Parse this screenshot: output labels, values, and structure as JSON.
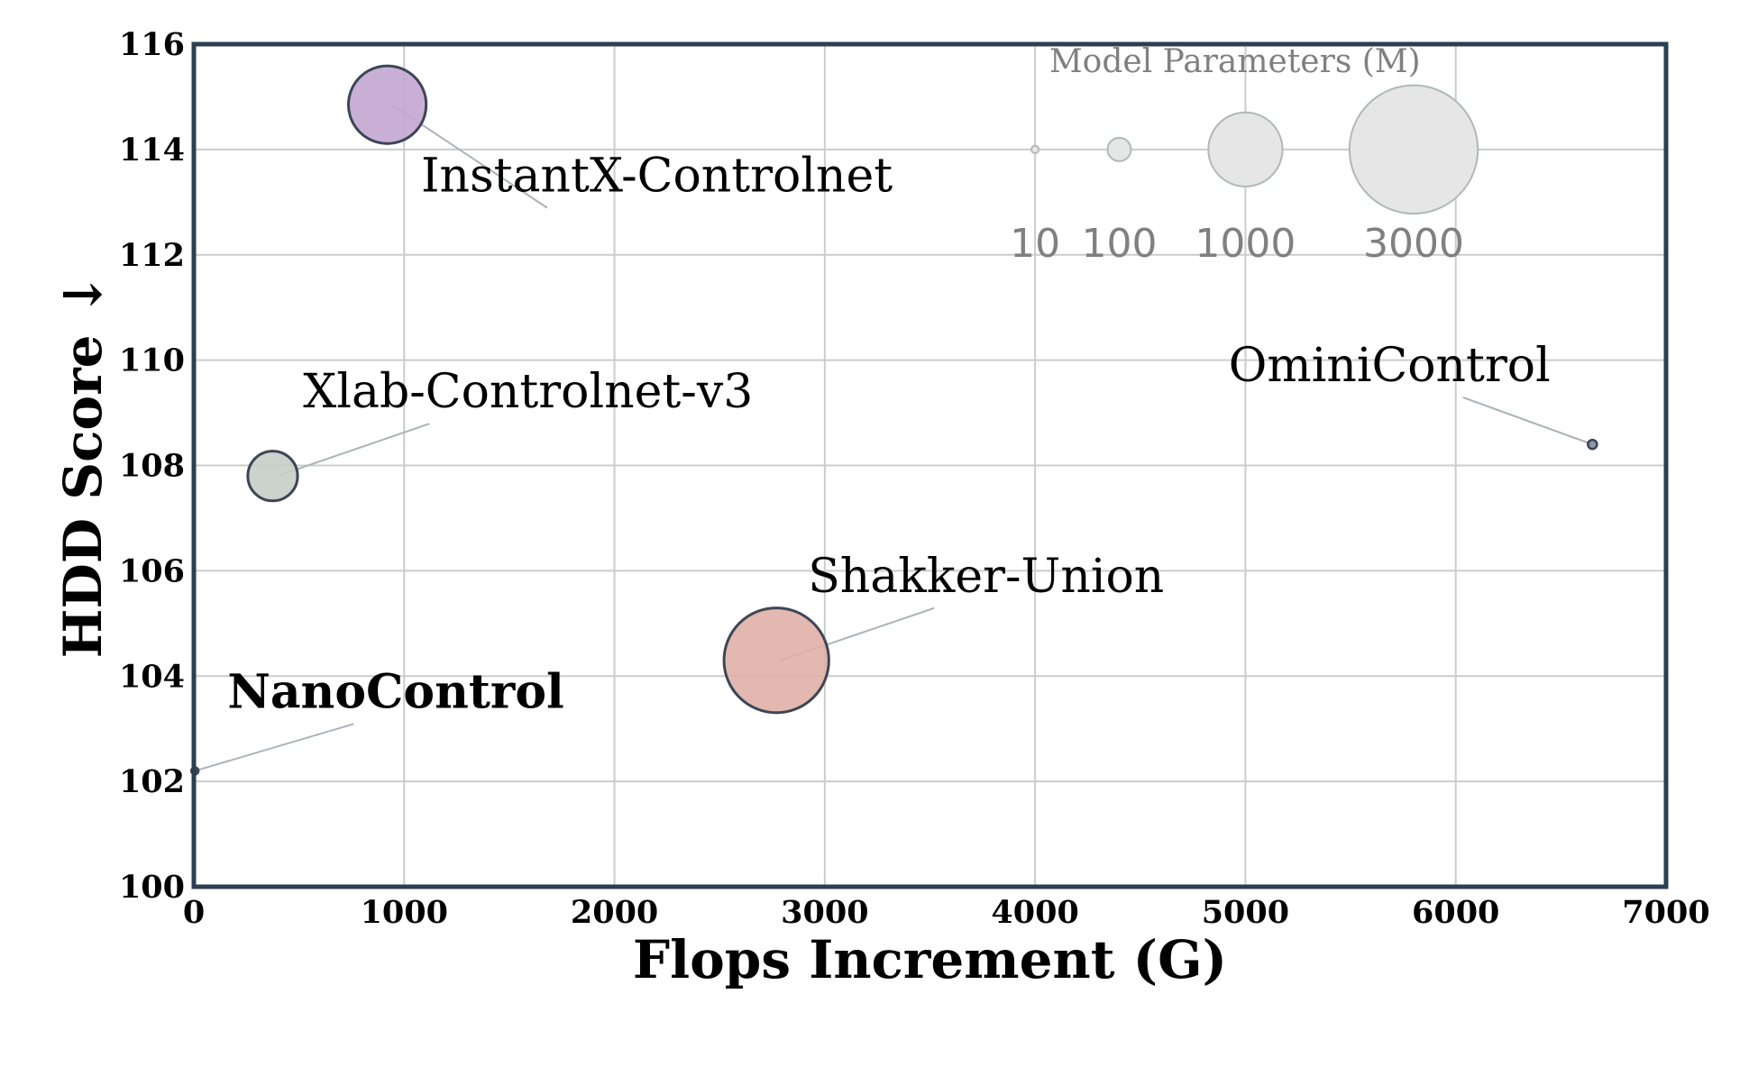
{
  "chart_data": {
    "type": "scatter",
    "xlabel": "Flops Increment (G)",
    "ylabel": "HDD Score ↓",
    "xlim": [
      0,
      7000
    ],
    "ylim": [
      100,
      116
    ],
    "xticks": [
      "0",
      "1000",
      "2000",
      "3000",
      "4000",
      "5000",
      "6000",
      "7000"
    ],
    "yticks": [
      "100",
      "102",
      "104",
      "106",
      "108",
      "110",
      "112",
      "114",
      "116"
    ],
    "grid": true,
    "size_legend": {
      "title": "Model Parameters (M)",
      "placement": "top-right",
      "entries": [
        {
          "label": "10",
          "params": 10,
          "x": 4000
        },
        {
          "label": "100",
          "params": 100,
          "x": 4400
        },
        {
          "label": "1000",
          "params": 1000,
          "x": 5000
        },
        {
          "label": "3000",
          "params": 3000,
          "x": 5800
        }
      ]
    },
    "points": [
      {
        "name": "InstantX-Controlnet",
        "x": 920,
        "y": 114.85,
        "params": 1100,
        "color": "#c3a6d1",
        "label_x": 1080,
        "label_y": 113.2,
        "highlight": false
      },
      {
        "name": "Xlab-Controlnet-v3",
        "x": 375,
        "y": 107.8,
        "params": 450,
        "color": "#c5cec6",
        "label_x": 520,
        "label_y": 109.1,
        "highlight": false
      },
      {
        "name": "Shakker-Union",
        "x": 2770,
        "y": 104.3,
        "params": 2000,
        "color": "#dfb0a9",
        "label_x": 2920,
        "label_y": 105.6,
        "highlight": false
      },
      {
        "name": "OminiControl",
        "x": 6650,
        "y": 108.4,
        "params": 15,
        "color": "#7d8fa3",
        "label_x": 4920,
        "label_y": 109.6,
        "highlight": false
      },
      {
        "name": "NanoControl",
        "x": 5,
        "y": 102.2,
        "params": 1,
        "color": "#2c3e50",
        "label_x": 160,
        "label_y": 103.4,
        "highlight": true,
        "label_color": "#e04e39"
      }
    ]
  }
}
